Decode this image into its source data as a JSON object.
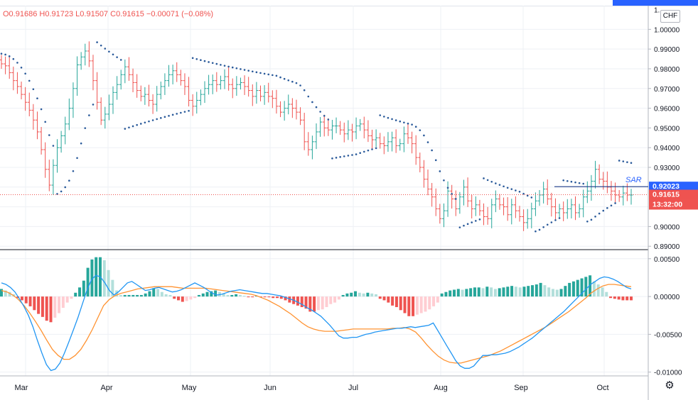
{
  "ohlc": {
    "open": "O0.91686",
    "high": "H0.91723",
    "low": "L0.91507",
    "close": "C0.91615",
    "change": "−0.00071 (−0.08%)"
  },
  "currency_button": "CHF",
  "colors": {
    "up": "#26a69a",
    "down": "#ef5350",
    "sar": "#2a5a9a",
    "macd_line": "#2196f3",
    "signal_line": "#ff9332",
    "hist_up_strong": "#26a69a",
    "hist_up_weak": "#b2dfdb",
    "hist_down_strong": "#ef5350",
    "hist_down_weak": "#ffcdd2",
    "sar_price_badge": "#2962ff",
    "last_price_badge": "#ef5350"
  },
  "badges": {
    "sar_label": "SAR",
    "sar_value": "0.92023",
    "last_price": "0.91615",
    "countdown": "13:32:00"
  },
  "price_axis": {
    "ticks": [
      "1.00000",
      "0.99000",
      "0.98000",
      "0.97000",
      "0.96000",
      "0.95000",
      "0.94000",
      "0.93000",
      "0.90000",
      "0.89000"
    ],
    "top_tick_partial": "1."
  },
  "macd_axis": {
    "ticks": [
      "0.00500",
      "0.00000",
      "-0.00500",
      "-0.01000"
    ]
  },
  "time_axis": {
    "labels": [
      "Mar",
      "Apr",
      "May",
      "Jun",
      "Jul",
      "Aug",
      "Sep",
      "Oct"
    ]
  },
  "chart_data": {
    "type": "ohlc",
    "title": "",
    "price_range": [
      0.889,
      1.012
    ],
    "macd_range": [
      -0.0105,
      0.0062
    ],
    "close": [
      0.9825,
      0.9815,
      0.978,
      0.974,
      0.971,
      0.967,
      0.963,
      0.959,
      0.954,
      0.948,
      0.939,
      0.929,
      0.921,
      0.931,
      0.94,
      0.946,
      0.952,
      0.96,
      0.97,
      0.982,
      0.986,
      0.989,
      0.984,
      0.974,
      0.963,
      0.954,
      0.957,
      0.962,
      0.968,
      0.972,
      0.977,
      0.981,
      0.977,
      0.973,
      0.969,
      0.966,
      0.967,
      0.964,
      0.962,
      0.967,
      0.971,
      0.974,
      0.977,
      0.979,
      0.977,
      0.974,
      0.971,
      0.964,
      0.961,
      0.964,
      0.967,
      0.97,
      0.972,
      0.974,
      0.972,
      0.974,
      0.976,
      0.972,
      0.97,
      0.972,
      0.973,
      0.971,
      0.969,
      0.966,
      0.969,
      0.966,
      0.968,
      0.966,
      0.965,
      0.961,
      0.958,
      0.96,
      0.962,
      0.96,
      0.958,
      0.954,
      0.943,
      0.939,
      0.943,
      0.948,
      0.953,
      0.95,
      0.949,
      0.951,
      0.951,
      0.949,
      0.947,
      0.949,
      0.948,
      0.951,
      0.952,
      0.949,
      0.946,
      0.944,
      0.945,
      0.942,
      0.941,
      0.943,
      0.945,
      0.941,
      0.942,
      0.947,
      0.945,
      0.942,
      0.935,
      0.93,
      0.924,
      0.919,
      0.915,
      0.909,
      0.904,
      0.908,
      0.918,
      0.914,
      0.909,
      0.915,
      0.92,
      0.913,
      0.909,
      0.911,
      0.908,
      0.905,
      0.904,
      0.911,
      0.914,
      0.911,
      0.91,
      0.906,
      0.911,
      0.908,
      0.905,
      0.902,
      0.904,
      0.909,
      0.913,
      0.916,
      0.919,
      0.914,
      0.91,
      0.907,
      0.909,
      0.907,
      0.909,
      0.911,
      0.907,
      0.909,
      0.915,
      0.918,
      0.923,
      0.929,
      0.924,
      0.923,
      0.92,
      0.918,
      0.916,
      0.915,
      0.917,
      0.916,
      0.916
    ],
    "range": [
      0.9773,
      0.9978
    ],
    "macd": [
      0.0018,
      0.0016,
      0.0012,
      0.0006,
      -0.0003,
      -0.0013,
      -0.0025,
      -0.004,
      -0.0058,
      -0.0075,
      -0.009,
      -0.0098,
      -0.0096,
      -0.0088,
      -0.0075,
      -0.006,
      -0.0044,
      -0.0028,
      -0.001,
      0.0008,
      0.0022,
      0.0028,
      0.0026,
      0.0018,
      0.0008,
      0.0002,
      0.0006,
      0.0012,
      0.0018,
      0.002,
      0.0016,
      0.0012,
      0.0008,
      0.0009,
      0.0011,
      0.0012,
      0.001,
      0.0008,
      0.0006,
      0.0007,
      0.0009,
      0.0012,
      0.0015,
      0.0018,
      0.0015,
      0.0012,
      0.0008,
      0.0004,
      0.0002,
      0.0003,
      0.0005,
      0.0007,
      0.0008,
      0.0009,
      0.0008,
      0.0007,
      0.0006,
      0.0005,
      0.0004,
      0.0004,
      0.0003,
      0.0002,
      0.0001,
      -0.0001,
      -0.0003,
      -0.0005,
      -0.0008,
      -0.0011,
      -0.0015,
      -0.0018,
      -0.0022,
      -0.0026,
      -0.0032,
      -0.0038,
      -0.0045,
      -0.0052,
      -0.0055,
      -0.0055,
      -0.0054,
      -0.0054,
      -0.0052,
      -0.005,
      -0.0049,
      -0.0047,
      -0.0046,
      -0.0045,
      -0.0044,
      -0.0043,
      -0.0042,
      -0.0042,
      -0.0041,
      -0.004,
      -0.0041,
      -0.004,
      -0.0039,
      -0.0038,
      -0.0035,
      -0.0045,
      -0.0055,
      -0.0065,
      -0.0075,
      -0.0085,
      -0.0092,
      -0.0095,
      -0.0095,
      -0.0092,
      -0.0085,
      -0.0078,
      -0.0078,
      -0.0077,
      -0.0077,
      -0.0076,
      -0.0075,
      -0.0073,
      -0.007,
      -0.0067,
      -0.0063,
      -0.0059,
      -0.0055,
      -0.005,
      -0.0045,
      -0.004,
      -0.0035,
      -0.003,
      -0.0025,
      -0.002,
      -0.0014,
      -0.0008,
      -0.0002,
      0.0004,
      0.001,
      0.0016,
      0.002,
      0.0024,
      0.0026,
      0.0025,
      0.0023,
      0.002,
      0.0016,
      0.0012,
      0.001
    ],
    "signal": [
      0.0008,
      0.0006,
      0.0002,
      -0.0004,
      -0.0012,
      -0.0022,
      -0.0033,
      -0.0045,
      -0.0058,
      -0.007,
      -0.0078,
      -0.0083,
      -0.0083,
      -0.0078,
      -0.007,
      -0.0058,
      -0.0044,
      -0.0028,
      -0.0012,
      -0.0004,
      0.0001,
      0.0004,
      0.0006,
      0.0008,
      0.001,
      0.0011,
      0.0012,
      0.0013,
      0.0013,
      0.0013,
      0.0013,
      0.0012,
      0.0011,
      0.0011,
      0.0011,
      0.0011,
      0.0011,
      0.001,
      0.0009,
      0.0008,
      0.0007,
      0.0006,
      0.0005,
      0.0004,
      0.0003,
      0.0001,
      -0.0002,
      -0.0005,
      -0.0009,
      -0.0013,
      -0.0018,
      -0.0023,
      -0.0029,
      -0.0035,
      -0.004,
      -0.0043,
      -0.0045,
      -0.0046,
      -0.0046,
      -0.0046,
      -0.0045,
      -0.0044,
      -0.0043,
      -0.0043,
      -0.0043,
      -0.0043,
      -0.0043,
      -0.0043,
      -0.0043,
      -0.0042,
      -0.0042,
      -0.0041,
      -0.0043,
      -0.0047,
      -0.0055,
      -0.0064,
      -0.0072,
      -0.0079,
      -0.0084,
      -0.0087,
      -0.0088,
      -0.0088,
      -0.0086,
      -0.0084,
      -0.0082,
      -0.008,
      -0.0078,
      -0.0075,
      -0.0072,
      -0.0068,
      -0.0064,
      -0.006,
      -0.0056,
      -0.0052,
      -0.0048,
      -0.0044,
      -0.004,
      -0.0035,
      -0.003,
      -0.0025,
      -0.002,
      -0.0014,
      -0.0008,
      -0.0002,
      0.0005,
      0.001,
      0.0014,
      0.0016,
      0.0016,
      0.0015,
      0.0014,
      0.0013
    ],
    "histogram": [
      0.001,
      0.0008,
      0.0006,
      0.0003,
      -0.0002,
      -0.0005,
      -0.0009,
      -0.0013,
      -0.0018,
      -0.0023,
      -0.0027,
      -0.0032,
      -0.0034,
      -0.0028,
      -0.0022,
      -0.0015,
      -0.0008,
      -0.0003,
      0.0005,
      0.0012,
      0.0021,
      0.0038,
      0.0049,
      0.0052,
      0.0052,
      0.0048,
      0.0035,
      0.0022,
      0.0008,
      0.0002,
      0.0002,
      0.0002,
      0.0002,
      0.0002,
      0.0002,
      0.0004,
      0.0007,
      0.0011,
      0.001,
      0.0006,
      0.0003,
      0.0002,
      -0.0003,
      -0.0005,
      -0.0007,
      -0.0006,
      -0.0004,
      -0.0002,
      0.0002,
      0.0004,
      0.0006,
      0.0007,
      0.0008,
      0.0006,
      0.0004,
      0.0002,
      0.0002,
      0.0003,
      0.0002,
      0.0001,
      -0.0001,
      -0.0001,
      0.0001,
      -0.0001,
      -0.0001,
      -0.0001,
      -0.0002,
      -0.0002,
      -0.0003,
      -0.0005,
      -0.0008,
      -0.001,
      -0.0012,
      -0.0014,
      -0.0016,
      -0.002,
      -0.002,
      -0.0018,
      -0.0017,
      -0.0014,
      -0.001,
      -0.0008,
      -0.0004,
      0.0002,
      0.0004,
      0.0005,
      0.0007,
      0.0005,
      0.0004,
      0.0005,
      0.0004,
      0.0003,
      -0.0003,
      -0.0005,
      -0.0008,
      -0.0012,
      -0.0014,
      -0.0018,
      -0.0022,
      -0.0026,
      -0.0026,
      -0.0024,
      -0.0022,
      -0.002,
      -0.0017,
      -0.0013,
      -0.0008,
      0.0004,
      0.0006,
      0.0008,
      0.0009,
      0.001,
      0.0009,
      0.001,
      0.0011,
      0.0012,
      0.0012,
      0.0011,
      0.0013,
      0.0012,
      0.001,
      0.0011,
      0.0012,
      0.0013,
      0.0014,
      0.0013,
      0.0012,
      0.0013,
      0.0014,
      0.0015,
      0.0016,
      0.0018,
      0.0015,
      0.0012,
      0.001,
      0.0009,
      0.001,
      0.0014,
      0.0018,
      0.002,
      0.0022,
      0.0024,
      0.0026,
      0.0028,
      0.002,
      0.0016,
      0.0012,
      0.0006,
      -0.0002,
      -0.0003,
      -0.0004,
      -0.0005,
      -0.0005,
      -0.0005
    ],
    "grid": true
  }
}
